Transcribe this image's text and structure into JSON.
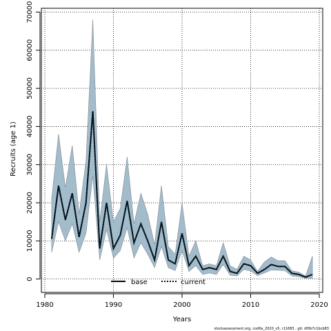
{
  "chart_data": {
    "type": "line",
    "xlabel": "Years",
    "ylabel": "Recruits (age 1)",
    "xlim": [
      1979.5,
      2020.5
    ],
    "ylim": [
      -3500,
      71000
    ],
    "xticks": [
      "1980",
      "1990",
      "2000",
      "2010",
      "2020"
    ],
    "yticks": [
      "0",
      "10000",
      "20000",
      "30000",
      "40000",
      "50000",
      "60000",
      "70000"
    ],
    "grid": true,
    "legend_position": "bottom-center",
    "x": [
      1981,
      1982,
      1983,
      1984,
      1985,
      1986,
      1987,
      1988,
      1989,
      1990,
      1991,
      1992,
      1993,
      1994,
      1995,
      1996,
      1997,
      1998,
      1999,
      2000,
      2001,
      2002,
      2003,
      2004,
      2005,
      2006,
      2007,
      2008,
      2009,
      2010,
      2011,
      2012,
      2013,
      2014,
      2015,
      2016,
      2017,
      2018,
      2019
    ],
    "series": [
      {
        "name": "base",
        "style": "solid",
        "values": [
          10500,
          24500,
          15500,
          22500,
          11000,
          20000,
          44000,
          8000,
          20000,
          8000,
          11500,
          20500,
          9500,
          14500,
          10000,
          5000,
          15000,
          5000,
          4000,
          12000,
          3500,
          6000,
          2500,
          3000,
          2500,
          6000,
          2000,
          1500,
          4000,
          3500,
          1500,
          2500,
          3800,
          3300,
          3300,
          1500,
          1200,
          500,
          1200
        ]
      },
      {
        "name": "current",
        "style": "dotted",
        "values": [
          10500,
          24500,
          15500,
          22500,
          11000,
          20000,
          44000,
          8000,
          20000,
          8000,
          11500,
          20500,
          9500,
          14500,
          10000,
          5000,
          15000,
          5000,
          4000,
          12000,
          3500,
          6000,
          2500,
          3000,
          2500,
          6000,
          2000,
          1500,
          4000,
          3500,
          1500,
          2500,
          3800,
          3300,
          3300,
          1500,
          1200,
          500,
          1200
        ]
      }
    ],
    "band_upper": [
      21000,
      38000,
      24000,
      35000,
      17000,
      31000,
      68000,
      15000,
      30000,
      15000,
      18500,
      32000,
      14500,
      22500,
      17000,
      9000,
      24500,
      8500,
      6500,
      20000,
      6000,
      10000,
      3500,
      4000,
      3500,
      9500,
      3500,
      2500,
      6000,
      5000,
      2000,
      4500,
      5800,
      4800,
      4800,
      2200,
      1800,
      800,
      6000
    ],
    "band_lower": [
      7000,
      15000,
      10000,
      14500,
      7000,
      12000,
      27000,
      5000,
      13000,
      5500,
      7500,
      13500,
      5500,
      9500,
      6500,
      3000,
      8500,
      3000,
      2200,
      7500,
      2000,
      3500,
      1200,
      1600,
      1200,
      3800,
      1000,
      800,
      2500,
      2100,
      900,
      1600,
      2400,
      2300,
      2200,
      800,
      600,
      200,
      200
    ],
    "band_color": "#a3bccc",
    "band_edge_color": "#808890"
  },
  "footer": {
    "text": "stockassessment.org, cod6a_2020_v5, r11683 , git: df0b7c1bcb83"
  }
}
